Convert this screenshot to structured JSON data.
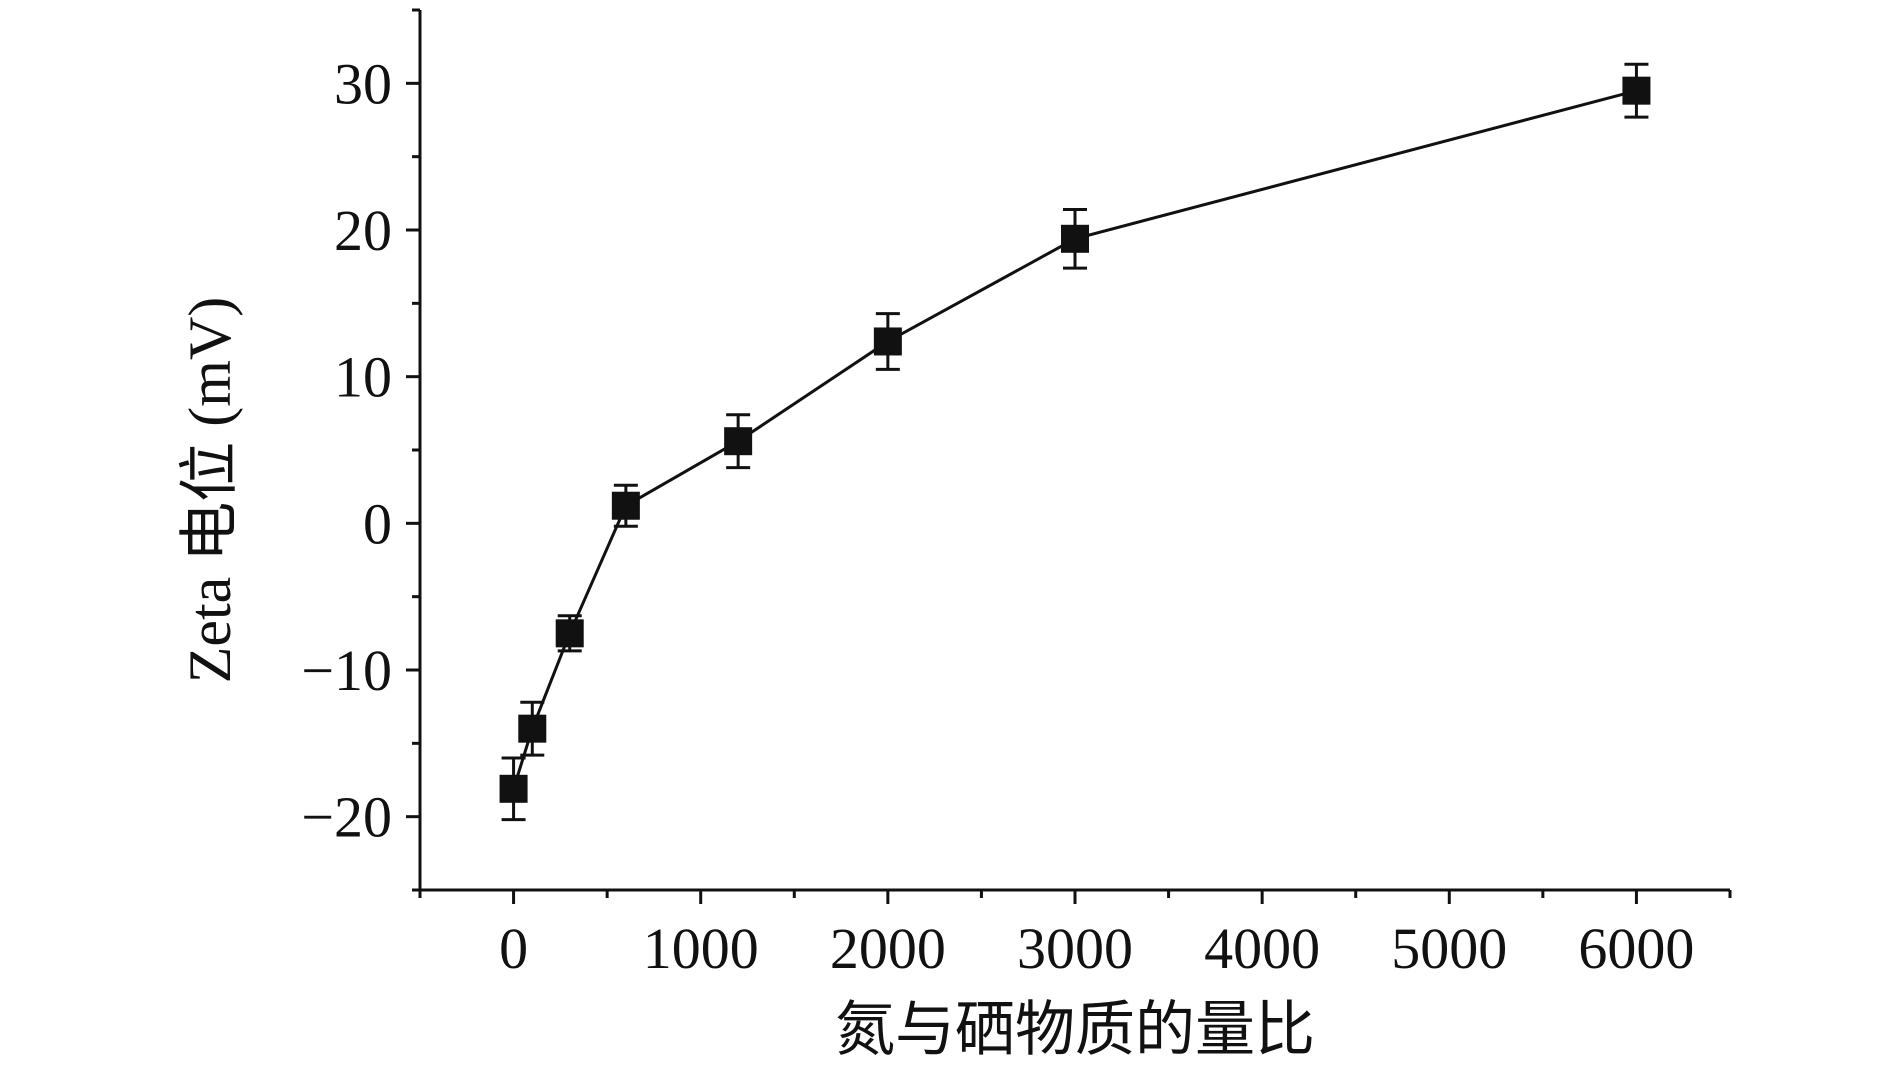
{
  "chart_data": {
    "type": "scatter",
    "title": "",
    "xlabel": "氮与硒物质的量比",
    "ylabel": "Zeta 电位 (mV)",
    "xlim": [
      -500,
      6500
    ],
    "ylim": [
      -25,
      35
    ],
    "xticks": [
      0,
      1000,
      2000,
      3000,
      4000,
      5000,
      6000
    ],
    "xtick_labels": [
      "0",
      "1000",
      "2000",
      "3000",
      "4000",
      "5000",
      "6000"
    ],
    "yticks": [
      -20,
      -10,
      0,
      10,
      20,
      30
    ],
    "ytick_labels": [
      "−20",
      "−10",
      "0",
      "10",
      "20",
      "30"
    ],
    "grid": false,
    "legend": "none",
    "connected": true,
    "marker": "square",
    "color": "#111111",
    "series": [
      {
        "x": [
          0,
          100,
          300,
          600,
          1200,
          2000,
          3000,
          6000
        ],
        "y": [
          -18.1,
          -14.0,
          -7.5,
          1.2,
          5.6,
          12.4,
          19.4,
          29.5
        ],
        "error": [
          2.1,
          1.8,
          1.2,
          1.4,
          1.8,
          1.9,
          2.0,
          1.8
        ]
      }
    ]
  }
}
